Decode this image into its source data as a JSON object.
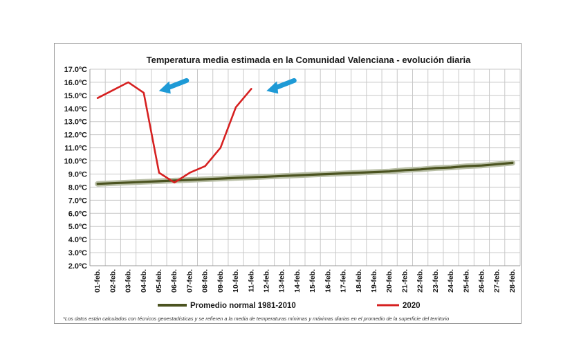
{
  "chart_data": {
    "type": "line",
    "title": "Temperatura media estimada en la Comunidad Valenciana - evolución diaria",
    "xlabel": "",
    "ylabel": "",
    "categories": [
      "01-feb.",
      "02-feb.",
      "03-feb.",
      "04-feb.",
      "05-feb.",
      "06-feb.",
      "07-feb.",
      "08-feb.",
      "09-feb.",
      "10-feb.",
      "11-feb.",
      "12-feb.",
      "13-feb.",
      "14-feb.",
      "15-feb.",
      "16-feb.",
      "17-feb.",
      "18-feb.",
      "19-feb.",
      "20-feb.",
      "21-feb.",
      "22-feb.",
      "23-feb.",
      "24-feb.",
      "25-feb.",
      "26-feb.",
      "27-feb.",
      "28-feb."
    ],
    "yticks": [
      "2.0ºC",
      "3.0ºC",
      "4.0ºC",
      "5.0ºC",
      "6.0ºC",
      "7.0ºC",
      "8.0ºC",
      "9.0ºC",
      "10.0ºC",
      "11.0ºC",
      "12.0ºC",
      "13.0ºC",
      "14.0ºC",
      "15.0ºC",
      "16.0ºC",
      "17.0ºC"
    ],
    "ylim": [
      2,
      17
    ],
    "grid": true,
    "legend_position": "bottom",
    "series": [
      {
        "name": "Promedio normal 1981-2010",
        "color": "#4b5320",
        "values": [
          8.25,
          8.3,
          8.35,
          8.4,
          8.45,
          8.5,
          8.55,
          8.6,
          8.65,
          8.7,
          8.75,
          8.8,
          8.85,
          8.9,
          8.95,
          9.0,
          9.05,
          9.1,
          9.15,
          9.2,
          9.3,
          9.35,
          9.45,
          9.5,
          9.6,
          9.65,
          9.75,
          9.85
        ]
      },
      {
        "name": "2020",
        "color": "#d62020",
        "values": [
          14.8,
          15.4,
          16.0,
          15.2,
          9.1,
          8.35,
          9.1,
          9.6,
          11.0,
          14.1,
          15.5,
          null,
          null,
          null,
          null,
          null,
          null,
          null,
          null,
          null,
          null,
          null,
          null,
          null,
          null,
          null,
          null,
          null
        ]
      }
    ],
    "annotations": [
      {
        "type": "arrow",
        "color": "#1e9ad6",
        "points_to": "04-feb."
      },
      {
        "type": "arrow",
        "color": "#1e9ad6",
        "points_to": "11-feb."
      }
    ],
    "footnote": "*Los datos están calculados con técnicos geoestadísticas y se refieren a la media de temperaturas mínimas y máximas diarias en el promedio de la superficie del territorio"
  }
}
